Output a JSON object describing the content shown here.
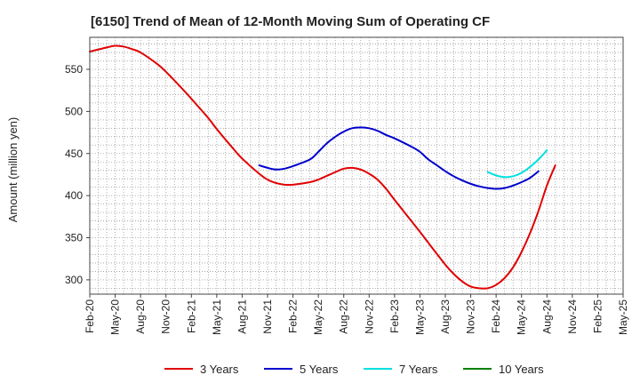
{
  "chart_data": {
    "type": "line",
    "title": "[6150]  Trend of Mean of 12-Month Moving Sum of Operating CF",
    "xlabel": "",
    "ylabel": "Amount (million yen)",
    "ylim": [
      283,
      588
    ],
    "yticks": [
      300,
      350,
      400,
      450,
      500,
      550
    ],
    "categories": [
      "Feb-20",
      "May-20",
      "Aug-20",
      "Nov-20",
      "Feb-21",
      "May-21",
      "Aug-21",
      "Nov-21",
      "Feb-22",
      "May-22",
      "Aug-22",
      "Nov-22",
      "Feb-23",
      "May-23",
      "Aug-23",
      "Nov-23",
      "Feb-24",
      "May-24",
      "Aug-24",
      "Nov-24",
      "Feb-25",
      "May-25"
    ],
    "grid": true,
    "legend_position": "bottom",
    "series": [
      {
        "name": "3 Years",
        "color": "#e00000",
        "points": [
          [
            0,
            571
          ],
          [
            0.67,
            576
          ],
          [
            1,
            578
          ],
          [
            1.33,
            577
          ],
          [
            1.67,
            574
          ],
          [
            2,
            570
          ],
          [
            2.67,
            556
          ],
          [
            3,
            547
          ],
          [
            3.67,
            526
          ],
          [
            4,
            515
          ],
          [
            4.67,
            492
          ],
          [
            5,
            479
          ],
          [
            5.67,
            455
          ],
          [
            6,
            444
          ],
          [
            6.67,
            426
          ],
          [
            7,
            419
          ],
          [
            7.33,
            415
          ],
          [
            7.67,
            413
          ],
          [
            8,
            413
          ],
          [
            8.67,
            416
          ],
          [
            9,
            419
          ],
          [
            9.67,
            428
          ],
          [
            10,
            432
          ],
          [
            10.33,
            433
          ],
          [
            10.67,
            431
          ],
          [
            11,
            426
          ],
          [
            11.33,
            419
          ],
          [
            11.67,
            408
          ],
          [
            12,
            395
          ],
          [
            13,
            357
          ],
          [
            13.33,
            344
          ],
          [
            14,
            318
          ],
          [
            14.33,
            307
          ],
          [
            14.67,
            298
          ],
          [
            15,
            292
          ],
          [
            15.33,
            290
          ],
          [
            15.67,
            290
          ],
          [
            16,
            294
          ],
          [
            16.33,
            302
          ],
          [
            16.67,
            315
          ],
          [
            17,
            333
          ],
          [
            17.33,
            355
          ],
          [
            17.67,
            382
          ],
          [
            18,
            412
          ],
          [
            18.33,
            436
          ]
        ]
      },
      {
        "name": "5 Years",
        "color": "#0000cc",
        "points": [
          [
            6.67,
            436
          ],
          [
            7,
            433
          ],
          [
            7.33,
            431
          ],
          [
            7.67,
            432
          ],
          [
            8,
            435
          ],
          [
            8.67,
            443
          ],
          [
            9,
            452
          ],
          [
            9.33,
            462
          ],
          [
            9.67,
            470
          ],
          [
            10,
            476
          ],
          [
            10.33,
            480
          ],
          [
            10.67,
            481
          ],
          [
            11,
            480
          ],
          [
            11.33,
            477
          ],
          [
            11.67,
            472
          ],
          [
            12,
            468
          ],
          [
            12.67,
            458
          ],
          [
            13,
            452
          ],
          [
            13.33,
            443
          ],
          [
            13.67,
            436
          ],
          [
            14,
            429
          ],
          [
            14.33,
            423
          ],
          [
            14.67,
            418
          ],
          [
            15,
            414
          ],
          [
            15.33,
            411
          ],
          [
            15.67,
            409
          ],
          [
            16,
            408
          ],
          [
            16.33,
            409
          ],
          [
            16.67,
            412
          ],
          [
            17,
            416
          ],
          [
            17.33,
            421
          ],
          [
            17.67,
            429
          ]
        ]
      },
      {
        "name": "7 Years",
        "color": "#00e0e0",
        "points": [
          [
            15.67,
            428
          ],
          [
            16,
            424
          ],
          [
            16.33,
            422
          ],
          [
            16.67,
            423
          ],
          [
            17,
            427
          ],
          [
            17.33,
            434
          ],
          [
            17.67,
            443
          ],
          [
            18,
            454
          ]
        ]
      },
      {
        "name": "10 Years",
        "color": "#008000",
        "points": []
      }
    ]
  }
}
